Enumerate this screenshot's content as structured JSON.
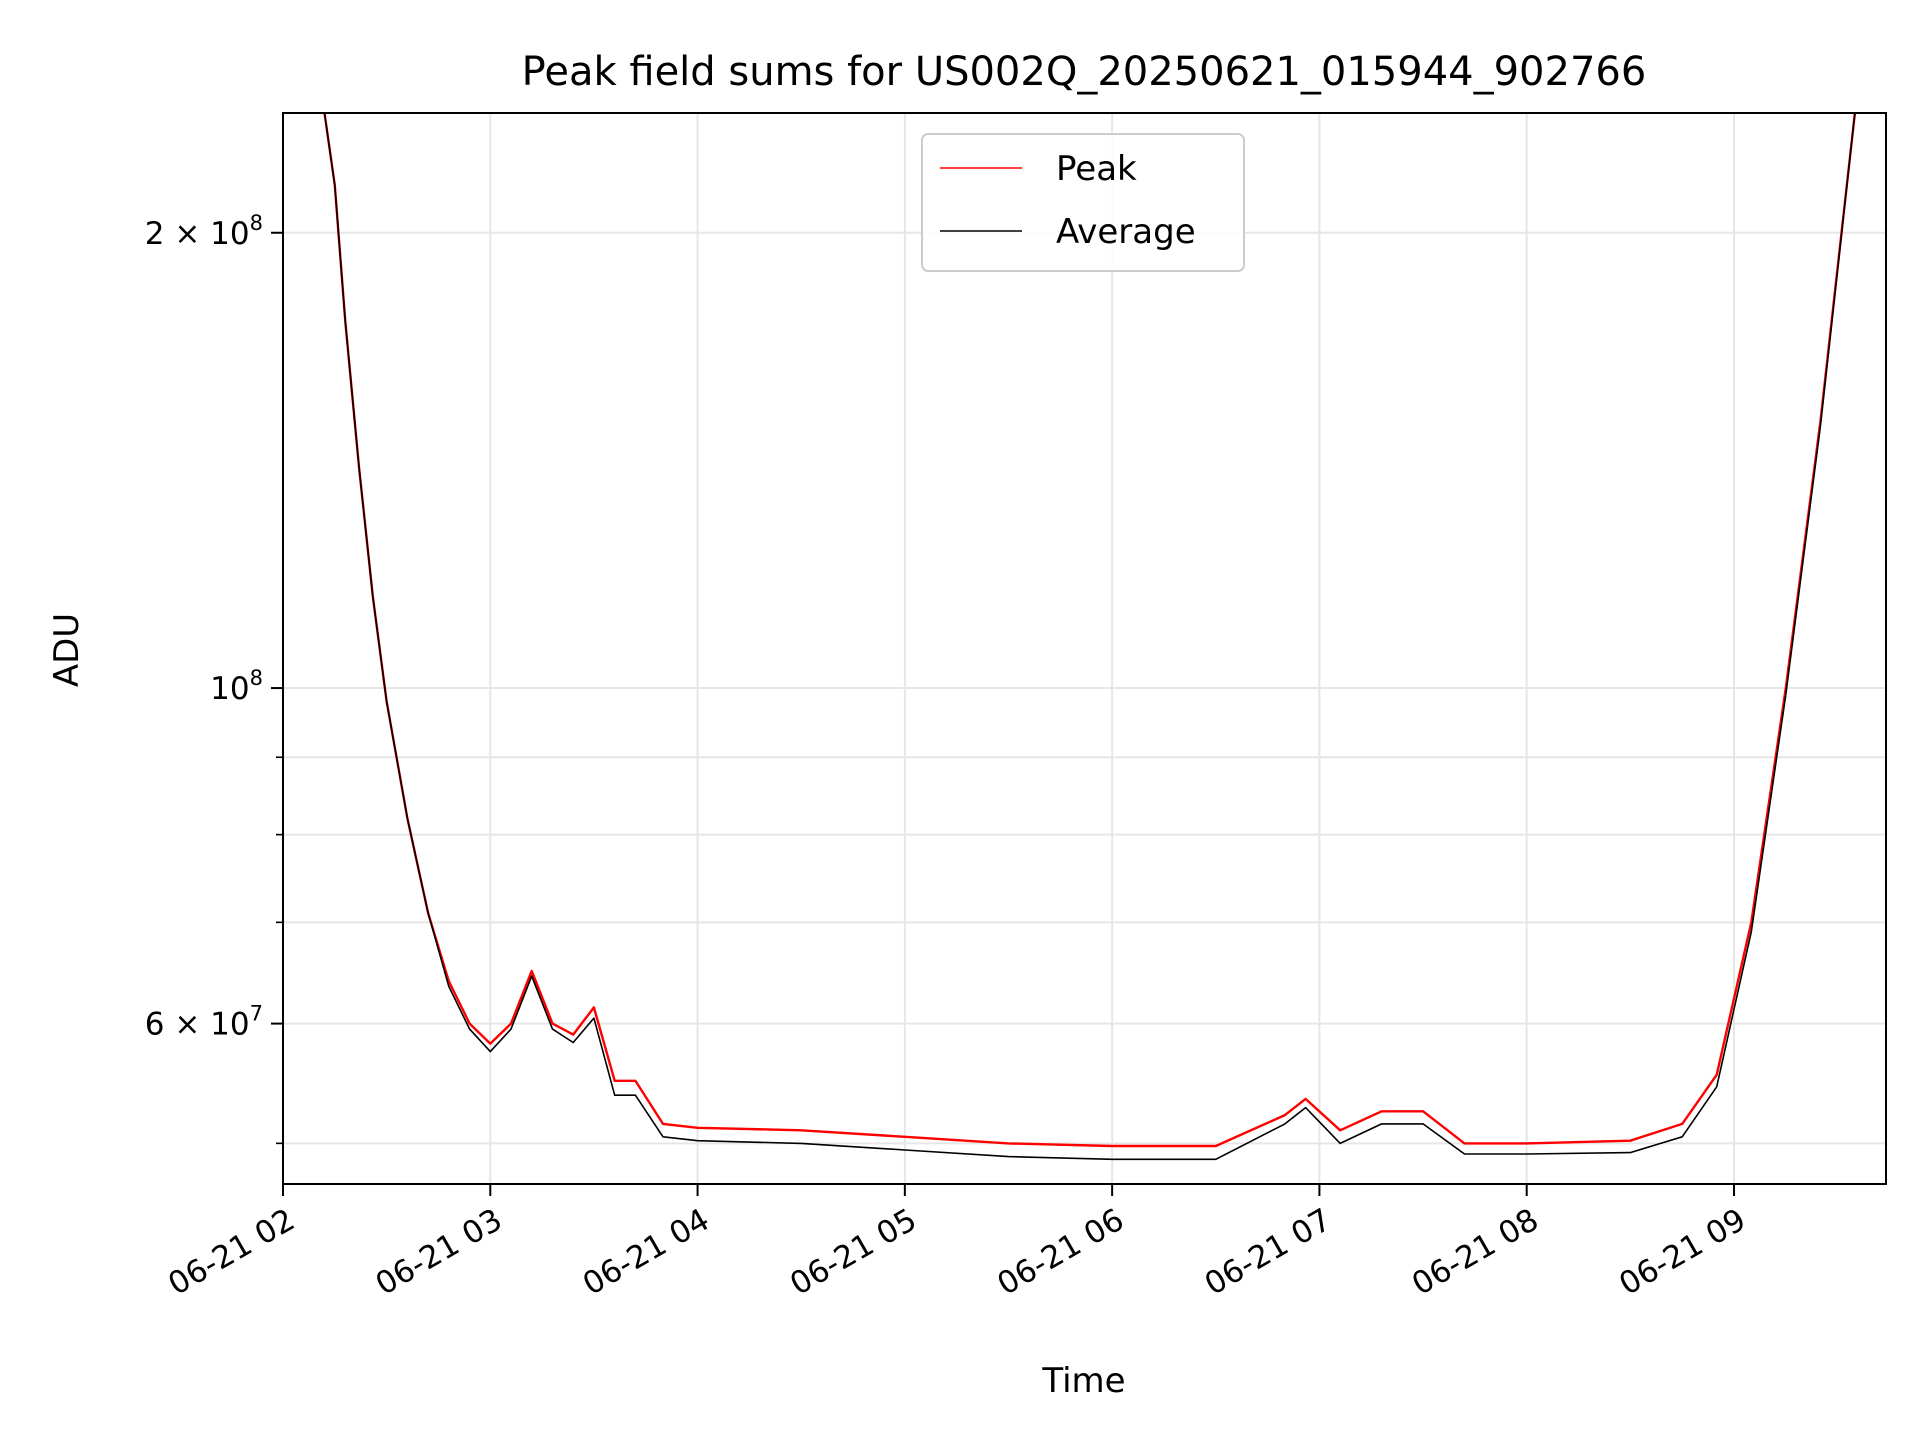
{
  "chart_data": {
    "type": "line",
    "title": "Peak field sums for US002Q_20250621_015944_902766",
    "xlabel": "Time",
    "ylabel": "ADU",
    "y_scale": "log",
    "grid": true,
    "legend_position": "top-center",
    "xlim": [
      "2025-06-21 02:00",
      "2025-06-21 09:44"
    ],
    "ylim": [
      47000000,
      240000000
    ],
    "x_ticks": [
      {
        "value": "2025-06-21 02:00",
        "label": "06-21 02"
      },
      {
        "value": "2025-06-21 03:00",
        "label": "06-21 03"
      },
      {
        "value": "2025-06-21 04:00",
        "label": "06-21 04"
      },
      {
        "value": "2025-06-21 05:00",
        "label": "06-21 05"
      },
      {
        "value": "2025-06-21 06:00",
        "label": "06-21 06"
      },
      {
        "value": "2025-06-21 07:00",
        "label": "06-21 07"
      },
      {
        "value": "2025-06-21 08:00",
        "label": "06-21 08"
      },
      {
        "value": "2025-06-21 09:00",
        "label": "06-21 09"
      }
    ],
    "y_ticks_major": [
      {
        "value": 60000000,
        "base": "6 × 10",
        "exp": "7"
      },
      {
        "value": 100000000,
        "base": "10",
        "exp": "8"
      },
      {
        "value": 200000000,
        "base": "2 × 10",
        "exp": "8"
      }
    ],
    "y_ticks_minor": [
      50000000,
      70000000,
      80000000,
      90000000
    ],
    "series": [
      {
        "name": "Peak",
        "color": "#ff0000",
        "points": [
          [
            "2025-06-21 02:12",
            240000000
          ],
          [
            "2025-06-21 02:15",
            215000000
          ],
          [
            "2025-06-21 02:18",
            175000000
          ],
          [
            "2025-06-21 02:22",
            140000000
          ],
          [
            "2025-06-21 02:26",
            115000000
          ],
          [
            "2025-06-21 02:30",
            98000000
          ],
          [
            "2025-06-21 02:36",
            82000000
          ],
          [
            "2025-06-21 02:42",
            71000000
          ],
          [
            "2025-06-21 02:48",
            64000000
          ],
          [
            "2025-06-21 02:54",
            60000000
          ],
          [
            "2025-06-21 03:00",
            58200000
          ],
          [
            "2025-06-21 03:06",
            60000000
          ],
          [
            "2025-06-21 03:12",
            65000000
          ],
          [
            "2025-06-21 03:18",
            60000000
          ],
          [
            "2025-06-21 03:24",
            59000000
          ],
          [
            "2025-06-21 03:30",
            61500000
          ],
          [
            "2025-06-21 03:36",
            55000000
          ],
          [
            "2025-06-21 03:42",
            55000000
          ],
          [
            "2025-06-21 03:50",
            51500000
          ],
          [
            "2025-06-21 04:00",
            51200000
          ],
          [
            "2025-06-21 04:30",
            51000000
          ],
          [
            "2025-06-21 05:00",
            50500000
          ],
          [
            "2025-06-21 05:30",
            50000000
          ],
          [
            "2025-06-21 06:00",
            49800000
          ],
          [
            "2025-06-21 06:30",
            49800000
          ],
          [
            "2025-06-21 06:50",
            52200000
          ],
          [
            "2025-06-21 06:56",
            53500000
          ],
          [
            "2025-06-21 07:06",
            51000000
          ],
          [
            "2025-06-21 07:18",
            52500000
          ],
          [
            "2025-06-21 07:30",
            52500000
          ],
          [
            "2025-06-21 07:42",
            50000000
          ],
          [
            "2025-06-21 08:00",
            50000000
          ],
          [
            "2025-06-21 08:30",
            50200000
          ],
          [
            "2025-06-21 08:45",
            51500000
          ],
          [
            "2025-06-21 08:55",
            55500000
          ],
          [
            "2025-06-21 09:05",
            70000000
          ],
          [
            "2025-06-21 09:15",
            100000000
          ],
          [
            "2025-06-21 09:25",
            150000000
          ],
          [
            "2025-06-21 09:35",
            240000000
          ]
        ]
      },
      {
        "name": "Average",
        "color": "#000000",
        "points": [
          [
            "2025-06-21 02:12",
            240000000
          ],
          [
            "2025-06-21 02:15",
            215000000
          ],
          [
            "2025-06-21 02:18",
            175000000
          ],
          [
            "2025-06-21 02:22",
            140000000
          ],
          [
            "2025-06-21 02:26",
            115000000
          ],
          [
            "2025-06-21 02:30",
            98000000
          ],
          [
            "2025-06-21 02:36",
            82000000
          ],
          [
            "2025-06-21 02:42",
            71000000
          ],
          [
            "2025-06-21 02:48",
            63500000
          ],
          [
            "2025-06-21 02:54",
            59500000
          ],
          [
            "2025-06-21 03:00",
            57500000
          ],
          [
            "2025-06-21 03:06",
            59500000
          ],
          [
            "2025-06-21 03:12",
            64500000
          ],
          [
            "2025-06-21 03:18",
            59500000
          ],
          [
            "2025-06-21 03:24",
            58300000
          ],
          [
            "2025-06-21 03:30",
            60500000
          ],
          [
            "2025-06-21 03:36",
            53800000
          ],
          [
            "2025-06-21 03:42",
            53800000
          ],
          [
            "2025-06-21 03:50",
            50500000
          ],
          [
            "2025-06-21 04:00",
            50200000
          ],
          [
            "2025-06-21 04:30",
            50000000
          ],
          [
            "2025-06-21 05:00",
            49500000
          ],
          [
            "2025-06-21 05:30",
            49000000
          ],
          [
            "2025-06-21 06:00",
            48800000
          ],
          [
            "2025-06-21 06:30",
            48800000
          ],
          [
            "2025-06-21 06:50",
            51500000
          ],
          [
            "2025-06-21 06:56",
            52800000
          ],
          [
            "2025-06-21 07:06",
            50000000
          ],
          [
            "2025-06-21 07:18",
            51500000
          ],
          [
            "2025-06-21 07:30",
            51500000
          ],
          [
            "2025-06-21 07:42",
            49200000
          ],
          [
            "2025-06-21 08:00",
            49200000
          ],
          [
            "2025-06-21 08:30",
            49300000
          ],
          [
            "2025-06-21 08:45",
            50500000
          ],
          [
            "2025-06-21 08:55",
            54500000
          ],
          [
            "2025-06-21 09:05",
            69000000
          ],
          [
            "2025-06-21 09:15",
            99000000
          ],
          [
            "2025-06-21 09:25",
            149000000
          ],
          [
            "2025-06-21 09:35",
            240000000
          ]
        ]
      }
    ]
  }
}
